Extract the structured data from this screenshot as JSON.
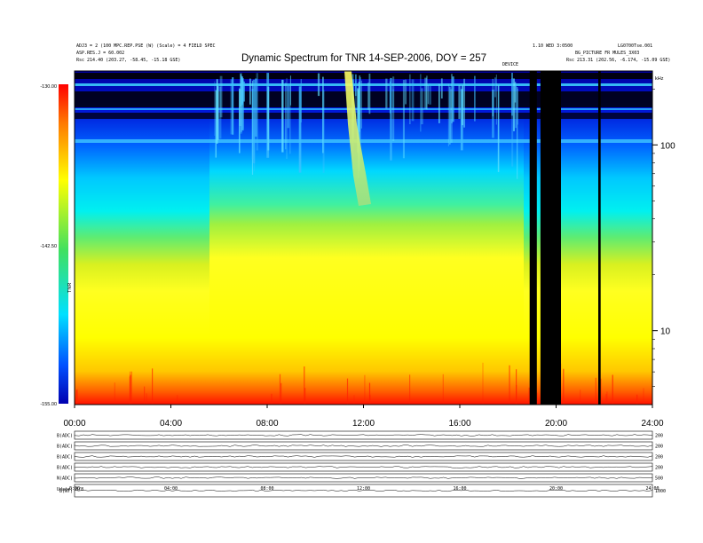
{
  "chart_data": {
    "type": "heatmap",
    "title": "Dynamic Spectrum for TNR 14-SEP-2006, DOY = 257",
    "header_left": [
      "ADJ3 = 2 (100 MPC.REP.PSE (W) (Scale) = 4 FIELD SPEC",
      "ASP.RES.J = 60.002",
      "Rsc 214.40 (203.27, -58.45, -15.18 GSE)"
    ],
    "header_right": [
      "1.10 WED 3:0500",
      "LG0700Tse.001",
      "BG_PICTURE FR MULES_3X03",
      "Rsc 213.31 (202.56, -6.174, -15.09 GSE)"
    ],
    "header_center_right": "DEVICE",
    "colorbar": {
      "label": "TNR",
      "ticks": [
        "-130.00",
        "-142.50",
        "-155.00"
      ],
      "range": [
        -155,
        -130
      ],
      "colors": [
        "#0000c0",
        "#0050ff",
        "#00d8ff",
        "#40e060",
        "#ffff00",
        "#ffa000",
        "#ff1000"
      ]
    },
    "x": {
      "ticks": [
        "00:00",
        "04:00",
        "08:00",
        "12:00",
        "16:00",
        "20:00",
        "24:00"
      ],
      "range_hours": [
        0,
        24
      ]
    },
    "y": {
      "unit": "kHz",
      "scale": "log",
      "range": [
        4,
        250
      ],
      "ticks": [
        {
          "label": "100",
          "value": 100
        },
        {
          "label": "10",
          "value": 10
        }
      ]
    },
    "data_gaps_hours": [
      [
        18.9,
        19.2
      ],
      [
        19.35,
        20.2
      ],
      [
        21.75,
        21.85
      ]
    ],
    "bright_tracks": [
      {
        "name": "type-III-burst",
        "start_hour": 11.2,
        "end_hour": 12.0,
        "from_khz": 250,
        "to_khz": 40
      }
    ],
    "strip_panels": [
      {
        "label": "B(ADC)",
        "right": "200"
      },
      {
        "label": "B(ADC)",
        "right": "200"
      },
      {
        "label": "B(ADC)",
        "right": "200"
      },
      {
        "label": "B(ADC)",
        "right": "200"
      },
      {
        "label": "N(ADC)",
        "right": "500"
      },
      {
        "label": "B(NT)",
        "right": "1000"
      }
    ],
    "bottom_ticks": [
      "0:00",
      "04:00",
      "08:00",
      "12:00",
      "16:00",
      "20:00",
      "24:00"
    ],
    "footer": "Udate: 8/8"
  }
}
